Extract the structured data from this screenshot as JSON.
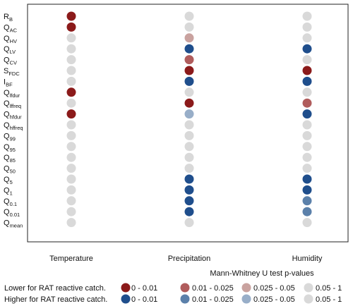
{
  "chart_data": {
    "type": "scatter",
    "columns": [
      "Temperature",
      "Precipitation",
      "Humidity"
    ],
    "rows": [
      {
        "base": "R",
        "sub": "B"
      },
      {
        "base": "Q",
        "sub": "AC"
      },
      {
        "base": "Q",
        "sub": "HV"
      },
      {
        "base": "Q",
        "sub": "LV"
      },
      {
        "base": "Q",
        "sub": "CV"
      },
      {
        "base": "S",
        "sub": "FDC"
      },
      {
        "base": "I",
        "sub": "BF"
      },
      {
        "base": "Q",
        "sub": "lfdur"
      },
      {
        "base": "Q",
        "sub": "lffreq"
      },
      {
        "base": "Q",
        "sub": "hfdur"
      },
      {
        "base": "Q",
        "sub": "hffreq"
      },
      {
        "base": "Q",
        "sub": "99"
      },
      {
        "base": "Q",
        "sub": "95"
      },
      {
        "base": "Q",
        "sub": "85"
      },
      {
        "base": "Q",
        "sub": "50"
      },
      {
        "base": "Q",
        "sub": "5"
      },
      {
        "base": "Q",
        "sub": "1"
      },
      {
        "base": "Q",
        "sub": "0.1"
      },
      {
        "base": "Q",
        "sub": "0.01"
      },
      {
        "base": "Q",
        "sub": "mean"
      }
    ],
    "colors": {
      "lower_strong": "#8b1a1a",
      "lower_medium": "#b05c5c",
      "lower_weak": "#c9a29f",
      "higher_strong": "#1f4e8c",
      "higher_medium": "#5b80aa",
      "higher_weak": "#98aec8",
      "ns": "#d9d9d9"
    },
    "cells": [
      [
        "lower_strong",
        "ns",
        "ns"
      ],
      [
        "lower_strong",
        "ns",
        "ns"
      ],
      [
        "ns",
        "lower_weak",
        "ns"
      ],
      [
        "ns",
        "higher_strong",
        "higher_strong"
      ],
      [
        "ns",
        "lower_medium",
        "ns"
      ],
      [
        "ns",
        "lower_strong",
        "lower_strong"
      ],
      [
        "ns",
        "higher_strong",
        "higher_strong"
      ],
      [
        "lower_strong",
        "ns",
        "ns"
      ],
      [
        "ns",
        "lower_strong",
        "lower_medium"
      ],
      [
        "lower_strong",
        "higher_weak",
        "higher_strong"
      ],
      [
        "ns",
        "ns",
        "ns"
      ],
      [
        "ns",
        "ns",
        "ns"
      ],
      [
        "ns",
        "ns",
        "ns"
      ],
      [
        "ns",
        "ns",
        "ns"
      ],
      [
        "ns",
        "ns",
        "ns"
      ],
      [
        "ns",
        "higher_strong",
        "higher_strong"
      ],
      [
        "ns",
        "higher_strong",
        "higher_strong"
      ],
      [
        "ns",
        "higher_strong",
        "higher_medium"
      ],
      [
        "ns",
        "higher_strong",
        "higher_medium"
      ],
      [
        "ns",
        "ns",
        "ns"
      ]
    ],
    "legend": {
      "title": "Mann-Whitney U test p-values",
      "lower_label": "Lower for RAT reactive catch.",
      "higher_label": "Higher for RAT reactive catch.",
      "lower_items": [
        {
          "color": "lower_strong",
          "label": "0 - 0.01"
        },
        {
          "color": "lower_medium",
          "label": "0.01 - 0.025"
        },
        {
          "color": "lower_weak",
          "label": "0.025 - 0.05"
        },
        {
          "color": "ns",
          "label": "0.05 - 1"
        }
      ],
      "higher_items": [
        {
          "color": "higher_strong",
          "label": "0 - 0.01"
        },
        {
          "color": "higher_medium",
          "label": "0.01 - 0.025"
        },
        {
          "color": "higher_weak",
          "label": "0.025 - 0.05"
        },
        {
          "color": "ns",
          "label": "0.05 - 1"
        }
      ]
    }
  }
}
